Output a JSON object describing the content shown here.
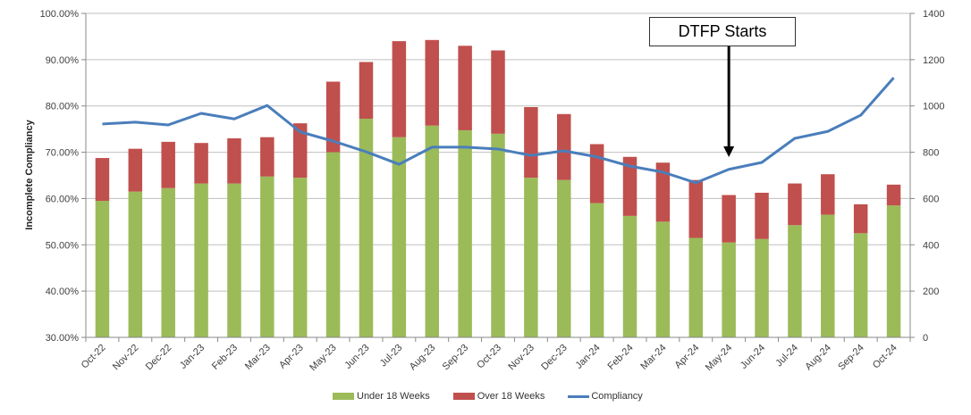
{
  "chart_data": {
    "type": "bar",
    "subtype": "stacked-bar-with-line",
    "title": "",
    "xlabel": "",
    "ylabel": "Incomplete Compliancy",
    "ylim": [
      30,
      100
    ],
    "y2lim": [
      0,
      1400
    ],
    "grid": true,
    "legend_position": "bottom",
    "y_ticks": [
      "30.00%",
      "40.00%",
      "50.00%",
      "60.00%",
      "70.00%",
      "80.00%",
      "90.00%",
      "100.00%"
    ],
    "y_tick_values": [
      30,
      40,
      50,
      60,
      70,
      80,
      90,
      100
    ],
    "y2_ticks": [
      "0",
      "200",
      "400",
      "600",
      "800",
      "1000",
      "1200",
      "1400"
    ],
    "y2_tick_values": [
      0,
      200,
      400,
      600,
      800,
      1000,
      1200,
      1400
    ],
    "categories": [
      "Oct-22",
      "Nov-22",
      "Dec-22",
      "Jan-23",
      "Feb-23",
      "Mar-23",
      "Apr-23",
      "May-23",
      "Jun-23",
      "Jul-23",
      "Aug-23",
      "Sep-23",
      "Oct-23",
      "Nov-23",
      "Dec-23",
      "Jan-24",
      "Feb-24",
      "Mar-24",
      "Apr-24",
      "May-24",
      "Jun-24",
      "Jul-24",
      "Aug-24",
      "Sep-24",
      "Oct-24"
    ],
    "series": [
      {
        "name": "Under 18 Weeks",
        "type": "bar",
        "axis": "secondary",
        "color": "#9bbb59",
        "values": [
          590,
          630,
          645,
          665,
          665,
          695,
          690,
          800,
          945,
          865,
          915,
          895,
          880,
          690,
          680,
          580,
          525,
          500,
          430,
          410,
          425,
          485,
          530,
          450,
          570
        ]
      },
      {
        "name": "Over 18 Weeks",
        "type": "bar",
        "axis": "secondary",
        "color": "#c0504d",
        "values": [
          185,
          185,
          200,
          175,
          195,
          170,
          235,
          305,
          245,
          415,
          370,
          365,
          360,
          305,
          285,
          255,
          255,
          255,
          250,
          205,
          200,
          180,
          175,
          125,
          90
        ]
      },
      {
        "name": "Compliancy",
        "type": "line",
        "axis": "primary",
        "color": "#4a7ebb",
        "values": [
          76.1,
          76.5,
          75.9,
          78.4,
          77.2,
          80.1,
          74.4,
          72.4,
          70.1,
          67.4,
          71.1,
          71.1,
          70.7,
          69.3,
          70.3,
          69.0,
          67.0,
          65.7,
          63.4,
          66.3,
          67.8,
          73.0,
          74.5,
          78.0,
          86.1
        ]
      }
    ],
    "annotations": [
      {
        "text": "DTFP Starts",
        "target_category": "May-24"
      }
    ]
  }
}
